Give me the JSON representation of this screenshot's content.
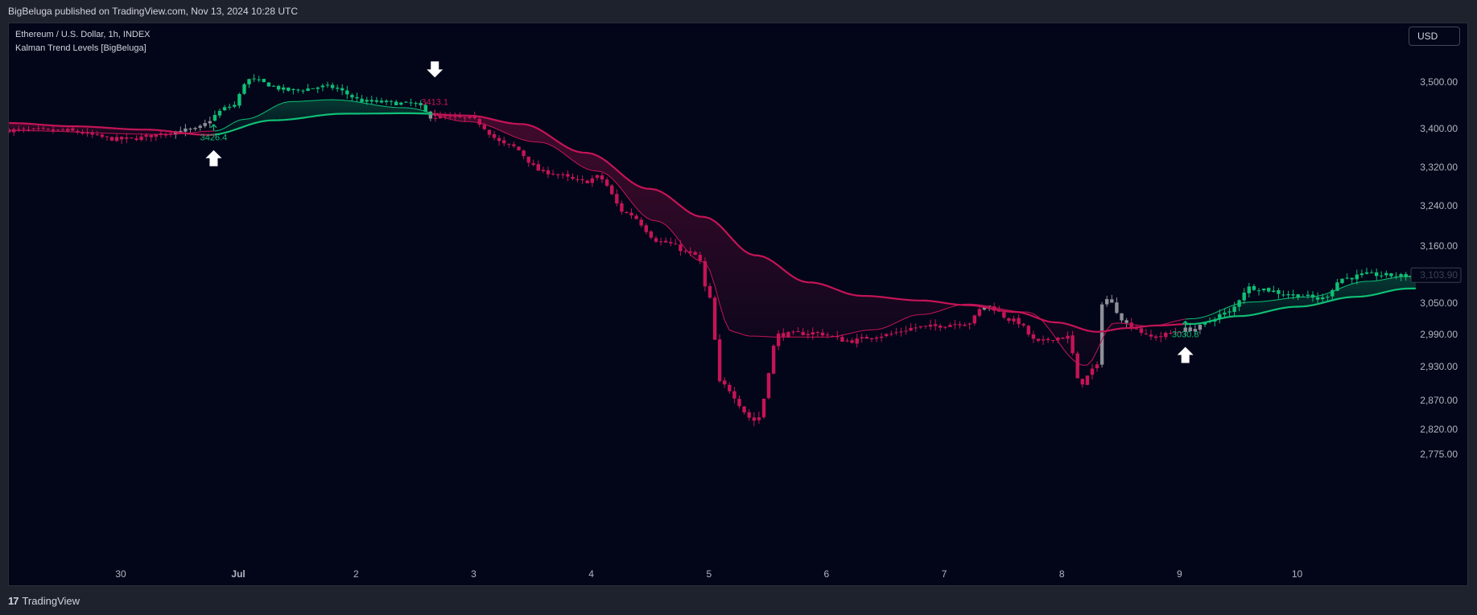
{
  "header": {
    "published_text": "BigBeluga published on TradingView.com, Nov 13, 2024 10:28 UTC"
  },
  "legend": {
    "symbol": "Ethereum / U.S. Dollar, 1h, INDEX",
    "indicator": "Kalman Trend Levels [BigBeluga]"
  },
  "currency_button": "USD",
  "footer": {
    "logo_text": "TradingView",
    "logo_mark": "17"
  },
  "colors": {
    "bull": "#0fbf75",
    "bear": "#c51456",
    "neutral": "#8e9097",
    "background": "#030619"
  },
  "chart_data": {
    "type": "candlestick",
    "y_ticks": [
      "3,500.00",
      "3,400.00",
      "3,320.00",
      "3,240.00",
      "3,160.00",
      "3,050.00",
      "2,990.00",
      "2,930.00",
      "2,870.00",
      "2,820.00",
      "2,775.00"
    ],
    "y_tick_values": [
      3500,
      3400,
      3320,
      3240,
      3160,
      3050,
      2990,
      2930,
      2870,
      2820,
      2775
    ],
    "x_ticks": [
      {
        "label": "30",
        "x": 0
      },
      {
        "label": "Jul",
        "x": 1
      },
      {
        "label": "2",
        "x": 2
      },
      {
        "label": "3",
        "x": 3
      },
      {
        "label": "4",
        "x": 4
      },
      {
        "label": "5",
        "x": 5
      },
      {
        "label": "6",
        "x": 6
      },
      {
        "label": "7",
        "x": 7
      },
      {
        "label": "8",
        "x": 8
      },
      {
        "label": "9",
        "x": 9
      },
      {
        "label": "10",
        "x": 10
      }
    ],
    "bold_x_tick": "Jul",
    "x_range": [
      -0.95,
      11.02
    ],
    "last_price": {
      "value": 3103.9,
      "label": "3,103.90"
    },
    "signals": [
      {
        "type": "bull",
        "x": 0.79,
        "level": 3426.4,
        "label": "3426.4"
      },
      {
        "type": "bear",
        "x": 2.67,
        "level": 3413.1,
        "label": "3413.1"
      },
      {
        "type": "bull",
        "x": 9.05,
        "level": 3030.8,
        "label": "3030.8"
      }
    ],
    "trend_anchor_days": [
      -0.95,
      -0.4,
      0.2,
      0.75,
      1.3,
      1.9,
      2.45,
      2.95,
      3.4,
      3.95,
      4.5,
      4.95,
      5.4,
      5.85,
      6.3,
      6.8,
      7.2,
      7.6,
      7.95,
      8.3,
      8.55,
      8.8,
      9.1,
      9.5,
      10.0,
      10.5,
      10.95
    ],
    "trend_anchor_vals": [
      3412,
      3405,
      3398,
      3387,
      3418,
      3432,
      3433,
      3428,
      3410,
      3350,
      3275,
      3218,
      3142,
      3090,
      3064,
      3055,
      3046,
      3033,
      3013,
      2995,
      3002,
      3007,
      3010,
      3025,
      3043,
      3062,
      3078
    ],
    "fast_anchor_days": [
      -0.95,
      0.4,
      0.8,
      1.05,
      1.45,
      1.8,
      2.4,
      2.95,
      3.55,
      4.05,
      4.55,
      4.95,
      5.2,
      5.35,
      5.6,
      6.0,
      6.4,
      6.8,
      7.2,
      7.7,
      8.2,
      8.45,
      8.75,
      9.1,
      9.6,
      10.1,
      10.6,
      10.95
    ],
    "fast_anchor_vals": [
      3396,
      3388,
      3395,
      3420,
      3458,
      3462,
      3445,
      3415,
      3372,
      3312,
      3210,
      3130,
      2995,
      2987,
      2985,
      2985,
      2999,
      3028,
      3048,
      3033,
      2932,
      3012,
      3006,
      3020,
      3052,
      3062,
      3092,
      3102
    ],
    "ohlc_anchor_days": [
      -0.95,
      -0.5,
      0,
      0.6,
      0.95,
      1.08,
      1.45,
      1.75,
      2.1,
      2.5,
      2.65,
      2.95,
      3.3,
      3.6,
      3.95,
      4.05,
      4.3,
      4.6,
      4.9,
      5.0,
      5.1,
      5.4,
      5.6,
      5.9,
      6.2,
      6.45,
      6.8,
      7.2,
      7.35,
      7.6,
      7.8,
      7.95,
      8.05,
      8.15,
      8.3,
      8.35,
      8.6,
      8.75,
      9.1,
      9.4,
      9.6,
      10.0,
      10.2,
      10.4,
      10.6,
      10.95
    ],
    "ohlc_anchor_vals": [
      3397,
      3396,
      3378,
      3397,
      3448,
      3505,
      3482,
      3490,
      3458,
      3453,
      3425,
      3422,
      3365,
      3310,
      3290,
      3300,
      3225,
      3168,
      3142,
      3060,
      2898,
      2835,
      2990,
      2993,
      2978,
      2988,
      3004,
      3012,
      3045,
      3016,
      2975,
      2984,
      2985,
      2900,
      2930,
      3060,
      3005,
      2985,
      3000,
      3030,
      3080,
      3065,
      3058,
      3098,
      3105,
      3102
    ]
  }
}
